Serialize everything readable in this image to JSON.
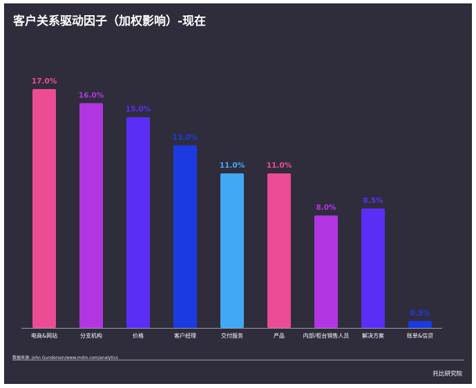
{
  "title": "客户关系驱动因子（加权影响）-现在",
  "footer": {
    "source": "数据来源: John Gunderson/www.mdm.com/analytics",
    "brand": "托比研究院"
  },
  "chart_data": {
    "type": "bar",
    "title": "客户关系驱动因子（加权影响）-现在",
    "xlabel": "",
    "ylabel": "",
    "ylim": [
      0,
      17
    ],
    "grid": false,
    "legend": "none",
    "value_suffix": "%",
    "categories": [
      "电商&网站",
      "分支机构",
      "价格",
      "客户经理",
      "交付服务",
      "产品",
      "内部/柜台销售人员",
      "解决方案",
      "账单&信贷"
    ],
    "values": [
      17.0,
      16.0,
      15.0,
      13.0,
      11.0,
      11.0,
      8.0,
      8.5,
      0.5
    ],
    "labels": [
      "17.0%",
      "16.0%",
      "15.0%",
      "13.0%",
      "11.0%",
      "11.0%",
      "8.0%",
      "8.5%",
      "0.5%"
    ],
    "colors": [
      "#ec4c94",
      "#b136e2",
      "#5b2ef6",
      "#1b3ae2",
      "#41a8f4",
      "#ec4c94",
      "#b136e2",
      "#5b2ef6",
      "#1b3ae2"
    ]
  }
}
